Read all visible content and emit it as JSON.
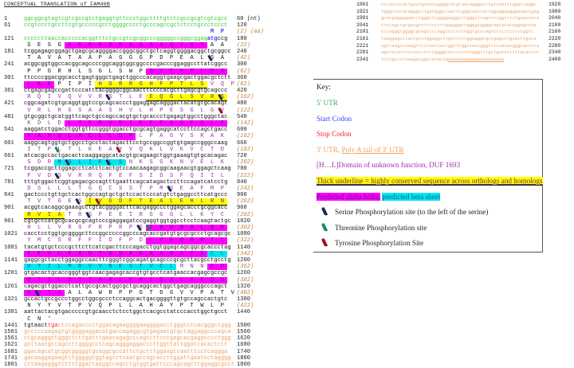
{
  "title": "CONCEPTUAL TRANSLATION of FAM46B",
  "colors": {
    "utr5": "#3ccc3c",
    "start": "#3a3aff",
    "stop": "#ff2020",
    "utr3": "#f0a060",
    "domain": "#a02cb0",
    "helix": "#ff00ff",
    "sheet": "#00e8ee",
    "conserved": "#ffff00"
  },
  "rows": [
    {
      "start": "1",
      "nt": [
        {
          "t": "ggcggcgtagtcgtcgccgtctgaggtgttccctggcttttgtctcgccgcgtcgtcgcc",
          "c": "g"
        }
      ],
      "end": "60 (nt)"
    },
    {
      "start": "61",
      "nt": [
        {
          "t": "ccgtccctgccttcgtgcccccgcctggggcccctgcccagccgctctcctgccctccct",
          "c": "g"
        }
      ],
      "end": "120",
      "aa": [
        {
          "t": "                  ",
          "c": "k"
        },
        {
          "t": "MP",
          "c": "b"
        }
      ],
      "cnt": "(2) (aa)"
    },
    {
      "start": "121",
      "nt": [
        {
          "t": "cccccttaaccacccccacggtttctgccgtcgcggcccgggggccgggcggag",
          "c": "g"
        },
        {
          "t": "atg",
          "c": "b"
        },
        {
          "t": "ccg",
          "c": "k"
        }
      ],
      "end": "180",
      "aa": [
        {
          "t": "SESG",
          "c": "k"
        },
        {
          "t": "AERRDRAAAAQVGT",
          "c": "k",
          "h": "helix"
        },
        {
          "t": "AA",
          "c": "k"
        }
      ],
      "cnt": "(22)"
    },
    {
      "start": "181",
      "nt": [
        {
          "t": "tcggagagcggagctgagcgcaggggaccgggcggctgctcaggtggggacggctgcggcc",
          "c": "k"
        }
      ],
      "end": "240",
      "aa": [
        {
          "t": "TAVATAAPAGGGPDPEALSA",
          "c": "k"
        }
      ],
      "cnt": "(42)",
      "phos": [
        {
          "i": 18,
          "type": "ser"
        }
      ]
    },
    {
      "start": "241",
      "nt": [
        {
          "t": "acggcggtggccacggcagccccggcaggcggcggccccgacccggaggccttatcggcc",
          "c": "k"
        }
      ],
      "end": "300",
      "aa": [
        {
          "t": "PPGRHLSGLSWP",
          "c": "k"
        },
        {
          "t": "DVEKRLDA",
          "c": "k",
          "h": "helix"
        }
      ],
      "cnt": "(62)"
    },
    {
      "start": "301",
      "nt": [
        {
          "t": "ttccccggacggcacctgagtgggctgagctggcccacaggtgaagcgactggacgctctt",
          "c": "k"
        }
      ],
      "end": "360",
      "aa": [
        {
          "t": "LEE",
          "c": "k",
          "h": "helix"
        },
        {
          "t": "PIPI",
          "c": "k"
        },
        {
          "t": "HGRRGHFPTLS",
          "c": "dom",
          "h": "cons"
        },
        {
          "t": "VQP",
          "c": "dom"
        }
      ],
      "cnt": "(82)"
    },
    {
      "start": "361",
      "nt": [
        {
          "t": "ctgagcgagccgattcccattcacggggcggcaacttccccacgcttgagcgtgcagccc",
          "c": "k"
        }
      ],
      "end": "420",
      "aa": [
        {
          "t": "RQIVQVVRSTLE",
          "c": "dom"
        },
        {
          "t": "EQGLSVRS",
          "c": "dom",
          "h": "cons"
        }
      ],
      "cnt": "(102)",
      "phos": [
        {
          "i": 8,
          "type": "ser"
        },
        {
          "i": 19,
          "type": "ser"
        }
      ]
    },
    {
      "start": "421",
      "nt": [
        {
          "t": "cggcagatcgtgcaggtggtccgcagcaccctggaggagcagggactacatgtgcacagt",
          "c": "k"
        }
      ],
      "end": "480",
      "aa": [
        {
          "t": "VRLHGSAASHVLHPESGLGV",
          "c": "dom"
        }
      ],
      "cnt": "(122)",
      "phos": [
        {
          "i": 19,
          "type": "tyr"
        }
      ]
    },
    {
      "start": "481",
      "nt": [
        {
          "t": "gtgcggctgcatggttcagctgccagccacgtgctgcaccctgagagtggcctgggctac",
          "c": "k"
        }
      ],
      "end": "540",
      "aa": [
        {
          "t": "KDLD",
          "c": "dom"
        },
        {
          "t": "LTFRVDIEEEASFQLT",
          "c": "dom",
          "h": "helix"
        }
      ],
      "cnt": "(142)"
    },
    {
      "start": "541",
      "nt": [
        {
          "t": "aaggatctggacctggtgttccgggtggacctgcgcagtgaggcatccttccagctgacc",
          "c": "k"
        }
      ],
      "end": "600",
      "aa": [
        {
          "t": "EAVVLACLLDF",
          "c": "dom",
          "h": "helix"
        },
        {
          "t": "LPAGVSRAK",
          "c": "dom"
        }
      ],
      "cnt": "(162)"
    },
    {
      "start": "601",
      "nt": [
        {
          "t": "aaggcagtggtgctggcctgcctactagacttcctgccggccggtgtgagccgggccaag",
          "c": "k"
        }
      ],
      "end": "660",
      "aa": [
        {
          "t": "ITPLTLKEAYVQKLVKVCTD",
          "c": "dom"
        }
      ],
      "cnt": "(182)",
      "phos": [
        {
          "i": 3,
          "type": "thr"
        },
        {
          "i": 9,
          "type": "tyr"
        }
      ]
    },
    {
      "start": "661",
      "nt": [
        {
          "t": "atcacgccactgacactcaaggaggcatacgtgcagaagctggtgaaagtgtgcacagac",
          "c": "k"
        }
      ],
      "end": "720",
      "aa": [
        {
          "t": "SDR",
          "c": "dom"
        },
        {
          "t": "NSLIFLS",
          "c": "dom",
          "h": "sheet"
        },
        {
          "t": "NKSGKNVELK",
          "c": "dom"
        }
      ],
      "cnt": "(202)",
      "phos": [
        {
          "i": 4,
          "type": "ser"
        },
        {
          "i": 8,
          "type": "ser"
        }
      ]
    },
    {
      "start": "721",
      "nt": [
        {
          "t": "tcggaccgcttggagcctcatctcactgtccaacaagagcggcaagaacgtggagctcaag",
          "c": "k"
        }
      ],
      "end": "780",
      "aa": [
        {
          "t": "FVDSVRRQFEFSIDSFQIIL",
          "c": "dom"
        }
      ],
      "cnt": "(222)",
      "phos": [
        {
          "i": 3,
          "type": "ser"
        }
      ]
    },
    {
      "start": "781",
      "nt": [
        {
          "t": "tttgtggactcggtgagacgccagtttgaattcagcatagactccttccagatcatcctg",
          "c": "k"
        }
      ],
      "end": "840",
      "aa": [
        {
          "t": "DSLLLTGQCSSTPMSEAFMP",
          "c": "dom"
        }
      ],
      "cnt": "(242)",
      "phos": [
        {
          "i": 14,
          "type": "ser"
        }
      ]
    },
    {
      "start": "841",
      "nt": [
        {
          "t": "gactccctgttgctcactggccagtgctgctccactcccatgtctgaggccttcatgccc",
          "c": "k"
        }
      ],
      "end": "900",
      "aa": [
        {
          "t": "TVTGES",
          "c": "dom"
        },
        {
          "t": "IVGDFTEALEHLRN",
          "c": "dom",
          "h": "cons"
        }
      ],
      "cnt": "(262)",
      "phos": [
        {
          "i": 5,
          "type": "ser"
        },
        {
          "i": 7,
          "type": "tyr"
        }
      ]
    },
    {
      "start": "901",
      "nt": [
        {
          "t": "acggtcacaggcgaaagcctgtacggggacttcacgaggccctggagcacctgcggcacc",
          "c": "k"
        }
      ],
      "end": "960",
      "aa": [
        {
          "t": "RVIA",
          "c": "dom",
          "h": "cons"
        },
        {
          "t": "TRSPEEIRGGGLLKYC",
          "c": "dom"
        }
      ],
      "cnt": "(282)",
      "phos": [
        {
          "i": 6,
          "type": "ser"
        }
      ]
    },
    {
      "start": "961",
      "nt": [
        {
          "t": "cgtgctcatgcgcacgcgcagtcccgaggagatccgaggtggtggcctcctcaagtactgc",
          "c": "k"
        }
      ],
      "end": "1020",
      "aa": [
        {
          "t": "HLLVRGFRPRPS",
          "c": "dom"
        },
        {
          "t": "TDVRALQR",
          "c": "dom",
          "h": "helix"
        }
      ],
      "cnt": "(302)",
      "phos": [
        {
          "i": 11,
          "type": "ser"
        },
        {
          "i": 12,
          "type": "thr"
        }
      ]
    },
    {
      "start": "1021",
      "nt": [
        {
          "t": "cacctcctggtgcggggcttccggcccccggcccagcaccgatgtgcgcgccctgcagcgc",
          "c": "k"
        }
      ],
      "end": "1080",
      "aa": [
        {
          "t": "YMCSRFFIDFPD",
          "c": "dom"
        },
        {
          "t": "LVEQRRTL",
          "c": "dom",
          "h": "helix"
        }
      ],
      "cnt": "(322)"
    },
    {
      "start": "1081",
      "nt": [
        {
          "t": "tacatgtgctcccgcttcttcatcgacttcccagacctggtggagcagcggcgcaccctag",
          "c": "k"
        }
      ],
      "end": "1140",
      "aa": [
        {
          "t": "EEVLEANTGSADAARAYA",
          "c": "dom",
          "h": "helix"
        },
        {
          "t": "CL",
          "c": "dom",
          "h": "sheet"
        }
      ],
      "cnt": "(342)"
    },
    {
      "start": "1141",
      "nt": [
        {
          "t": "gaggcgctacctggaggccaacttcgggtcggcagatgcagcccgcgcttacgcctgcctg",
          "c": "k"
        }
      ],
      "end": "1200",
      "aa": [
        {
          "t": "VTILMRVVNESTVCL",
          "c": "dom",
          "h": "sheet"
        },
        {
          "t": "MNN",
          "c": "dom"
        },
        {
          "t": "ER",
          "c": "dom",
          "h": "helix"
        }
      ],
      "cnt": "(362)"
    },
    {
      "start": "1201",
      "nt": [
        {
          "t": "gtgacactgcaccgggtggtcaacgagagcaccgtgtgcctcatgaaccacgagcgccgc",
          "c": "k"
        }
      ],
      "end": "1260",
      "aa": [
        {
          "t": "DTILDITAALVAIDALAEQG",
          "c": "dom",
          "h": "helix"
        }
      ],
      "cnt": "(382)"
    },
    {
      "start": "1261",
      "nt": [
        {
          "t": "cagacgctggacctcattgccgcactggcgctgcaggcactggctgagcagggcccagct",
          "c": "k"
        }
      ],
      "end": "1320",
      "aa": [
        {
          "t": "ASTA",
          "c": "dom",
          "h": "helix"
        },
        {
          "t": "ALAWRPPGTDGVVPATV",
          "c": "k"
        }
      ],
      "cnt": "(402)",
      "phos": [
        {
          "i": 1,
          "type": "ser"
        }
      ]
    },
    {
      "start": "1321",
      "nt": [
        {
          "t": "gccactgccgccctggcctggcgccctccaggcactgacggggttgtgccagccactgtc",
          "c": "k"
        }
      ],
      "end": "1380",
      "aa": [
        {
          "t": "NYYVTPVQPLLAHAYPTWLP",
          "c": "k"
        }
      ],
      "cnt": "(422)"
    },
    {
      "start": "1381",
      "nt": [
        {
          "t": "aattactacgtgacccccgtgcaacctctcctggctcacgcctatcccacctggctgcct",
          "c": "k"
        }
      ],
      "end": "1440",
      "aa": [
        {
          "t": "CN",
          "c": "k"
        },
        {
          "t": "*",
          "c": "r"
        }
      ],
      "cnt": ""
    },
    {
      "start": "1441",
      "nt": [
        {
          "t": "tgtaact",
          "c": "k"
        },
        {
          "t": "tga",
          "c": "r"
        },
        {
          "t": "ctccagacccctggacagaaggggaaggggacctgggcctcacgggctggg",
          "c": "o"
        }
      ],
      "end": "1500"
    },
    {
      "start": "1501",
      "nt": [
        {
          "t": "gcctccaagagtgtggggaggacatgaccagaggcgtgagaatgtgctaggaggcccagca",
          "c": "o"
        }
      ],
      "end": "1560"
    },
    {
      "start": "1561",
      "nt": [
        {
          "t": "ctgcagggctgggctcttgatttgaacagagcccagccttcccgagcacgaggcccctggg",
          "c": "o"
        }
      ],
      "end": "1620"
    },
    {
      "start": "1621",
      "nt": [
        {
          "t": "gcttaatgccagccttggggcctcagcagggaggacccttggttattggatcacactctt",
          "c": "o"
        }
      ],
      "end": "1680"
    },
    {
      "start": "1681",
      "nt": [
        {
          "t": "ggacagcatgcggtgggggtgcaggcgccattctgctttggaagtcaatttcctcaggga",
          "c": "o"
        }
      ],
      "end": "1740"
    },
    {
      "start": "1741",
      "nt": [
        {
          "t": "gacaaggagaagtttgggggtggtagcctcaatgccagcaccttggattgaatcctagggg",
          "c": "o"
        }
      ],
      "end": "1800"
    },
    {
      "start": "1801",
      "nt": [
        {
          "t": "cttaagagggtcttttggactaaggccagcctgtggtgattcccagcagcttggaggcgcct",
          "c": "o"
        }
      ],
      "end": "1860"
    }
  ],
  "right_rows": [
    {
      "start": "1861",
      "nt": [
        {
          "t": "cccaccacactgaatgatacaggggtatgtaacagggacttgtcaetttggatcaggc",
          "c": "o"
        }
      ],
      "end": "1920"
    },
    {
      "start": "1921",
      "nt": [
        {
          "t": "tgggccacacagggcctgatgggccaatttgggtaatcactggagggagggaaactgag",
          "c": "o"
        }
      ],
      "end": "1980"
    },
    {
      "start": "1981",
      "nt": [
        {
          "t": "gcacgaggagaacctgggtttggggagggcctgggtttagccccggtctctgaactaca",
          "c": "o"
        }
      ],
      "end": "2040"
    },
    {
      "start": "2041",
      "nt": [
        {
          "t": "ccccagctgtgaagccttcctcttgaggggttggggtggggcagtatacaggagccaa",
          "c": "o"
        }
      ],
      "end": "2100"
    },
    {
      "start": "2101",
      "nt": [
        {
          "t": "cccagggtggggcgcagccccaggccctcccaggtgcccagccttccccccctggtc",
          "c": "o"
        }
      ],
      "end": "2160"
    },
    {
      "start": "2161",
      "nt": [
        {
          "t": "taaggagcctactgcctggaggcttgtcctttggaaggtgctgagcctgaatttgcca",
          "c": "o"
        }
      ],
      "end": "2220"
    },
    {
      "start": "2221",
      "nt": [
        {
          "t": "agtcaagtcaaagttcccacccactggtttggttaccgggtctccacatgggtacccta",
          "c": "o"
        }
      ],
      "end": "2280"
    },
    {
      "start": "2281",
      "nt": [
        {
          "t": "agccatactcccacccccttggggtattccccctgggtttgttgatatttttgcactcc",
          "c": "o"
        }
      ],
      "end": "2340"
    },
    {
      "start": "2341",
      "nt": [
        {
          "t": "tcctgccctaaagacggtcacactg",
          "c": "o"
        },
        {
          "t": "aaaaaaaaaaaaaaaaaaaaa",
          "c": "o",
          "pa": true
        }
      ],
      "end": "2400"
    }
  ],
  "key": {
    "title": "Key:",
    "utr5": "5' UTR",
    "start": "Start Codon",
    "stop": "Stop Codon",
    "utr3": "3' UTR,",
    "polya": "Poly A tail of 3' UTR",
    "domain": "[H…L]Domain of unknown function, DUF 1693",
    "conserved": "Thick underline = highly conserved sequence across orthologs and homologs",
    "helix": "Predicted alpha helix;",
    "sheet": "predicted beta sheet",
    "ser": "Serine Phosphorylation site (to the left of the serine)",
    "thr": "Threonine Phosphorylation site",
    "tyr": "Tyrosine Phosphorylation Site",
    "icons": {
      "ser": "serine-phosphorylation-icon",
      "thr": "threonine-phosphorylation-icon",
      "tyr": "tyrosine-phosphorylation-icon"
    }
  }
}
